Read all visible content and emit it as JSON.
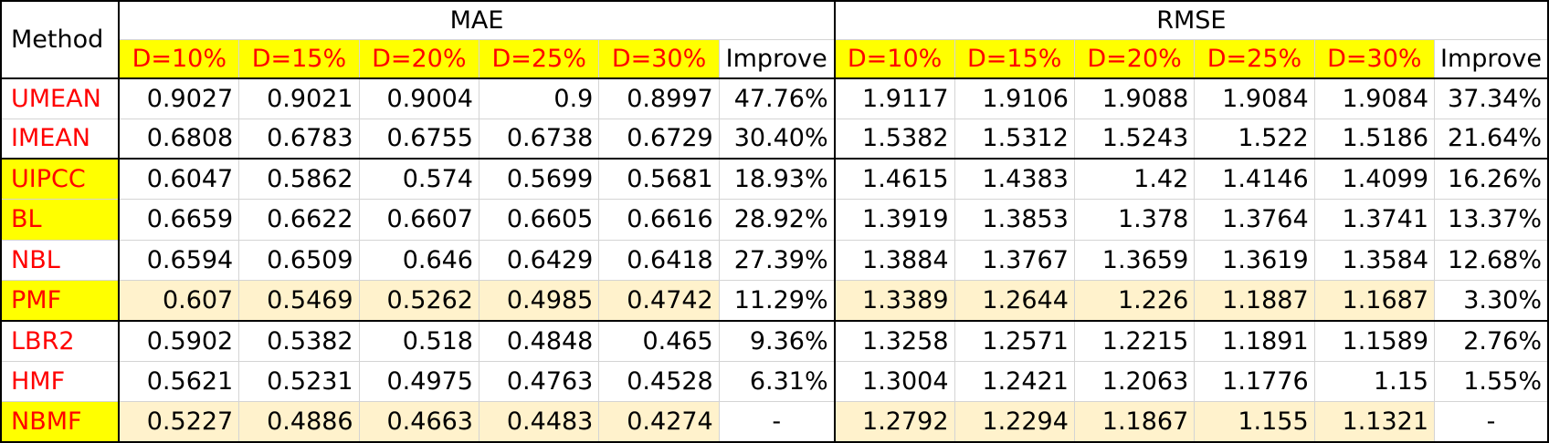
{
  "table": {
    "method_header": "Method",
    "mae_header": "MAE",
    "rmse_header": "RMSE",
    "density_headers": [
      "D=10%",
      "D=15%",
      "D=20%",
      "D=25%",
      "D=30%"
    ],
    "improve_header": "Improve",
    "rows": [
      {
        "method": "UMEAN",
        "mae": [
          "0.9027",
          "0.9021",
          "0.9004",
          "0.9",
          "0.8997"
        ],
        "mae_improve": "47.76%",
        "rmse": [
          "1.9117",
          "1.9106",
          "1.9088",
          "1.9084",
          "1.9084"
        ],
        "rmse_improve": "37.34%"
      },
      {
        "method": "IMEAN",
        "mae": [
          "0.6808",
          "0.6783",
          "0.6755",
          "0.6738",
          "0.6729"
        ],
        "mae_improve": "30.40%",
        "rmse": [
          "1.5382",
          "1.5312",
          "1.5243",
          "1.522",
          "1.5186"
        ],
        "rmse_improve": "21.64%"
      },
      {
        "method": "UIPCC",
        "mae": [
          "0.6047",
          "0.5862",
          "0.574",
          "0.5699",
          "0.5681"
        ],
        "mae_improve": "18.93%",
        "rmse": [
          "1.4615",
          "1.4383",
          "1.42",
          "1.4146",
          "1.4099"
        ],
        "rmse_improve": "16.26%"
      },
      {
        "method": "BL",
        "mae": [
          "0.6659",
          "0.6622",
          "0.6607",
          "0.6605",
          "0.6616"
        ],
        "mae_improve": "28.92%",
        "rmse": [
          "1.3919",
          "1.3853",
          "1.378",
          "1.3764",
          "1.3741"
        ],
        "rmse_improve": "13.37%"
      },
      {
        "method": "NBL",
        "mae": [
          "0.6594",
          "0.6509",
          "0.646",
          "0.6429",
          "0.6418"
        ],
        "mae_improve": "27.39%",
        "rmse": [
          "1.3884",
          "1.3767",
          "1.3659",
          "1.3619",
          "1.3584"
        ],
        "rmse_improve": "12.68%"
      },
      {
        "method": "PMF",
        "mae": [
          "0.607",
          "0.5469",
          "0.5262",
          "0.4985",
          "0.4742"
        ],
        "mae_improve": "11.29%",
        "rmse": [
          "1.3389",
          "1.2644",
          "1.226",
          "1.1887",
          "1.1687"
        ],
        "rmse_improve": "3.30%"
      },
      {
        "method": "LBR2",
        "mae": [
          "0.5902",
          "0.5382",
          "0.518",
          "0.4848",
          "0.465"
        ],
        "mae_improve": "9.36%",
        "rmse": [
          "1.3258",
          "1.2571",
          "1.2215",
          "1.1891",
          "1.1589"
        ],
        "rmse_improve": "2.76%"
      },
      {
        "method": "HMF",
        "mae": [
          "0.5621",
          "0.5231",
          "0.4975",
          "0.4763",
          "0.4528"
        ],
        "mae_improve": "6.31%",
        "rmse": [
          "1.3004",
          "1.2421",
          "1.2063",
          "1.1776",
          "1.15"
        ],
        "rmse_improve": "1.55%"
      },
      {
        "method": "NBMF",
        "mae": [
          "0.5227",
          "0.4886",
          "0.4663",
          "0.4483",
          "0.4274"
        ],
        "mae_improve": "-",
        "rmse": [
          "1.2792",
          "1.2294",
          "1.1867",
          "1.155",
          "1.1321"
        ],
        "rmse_improve": "-"
      }
    ]
  },
  "colors": {
    "method_text": "#ff0000",
    "header_highlight": "#ffff00",
    "row_highlight": "#fff2cc",
    "gridline": "#d4d4d4",
    "border": "#000000"
  }
}
